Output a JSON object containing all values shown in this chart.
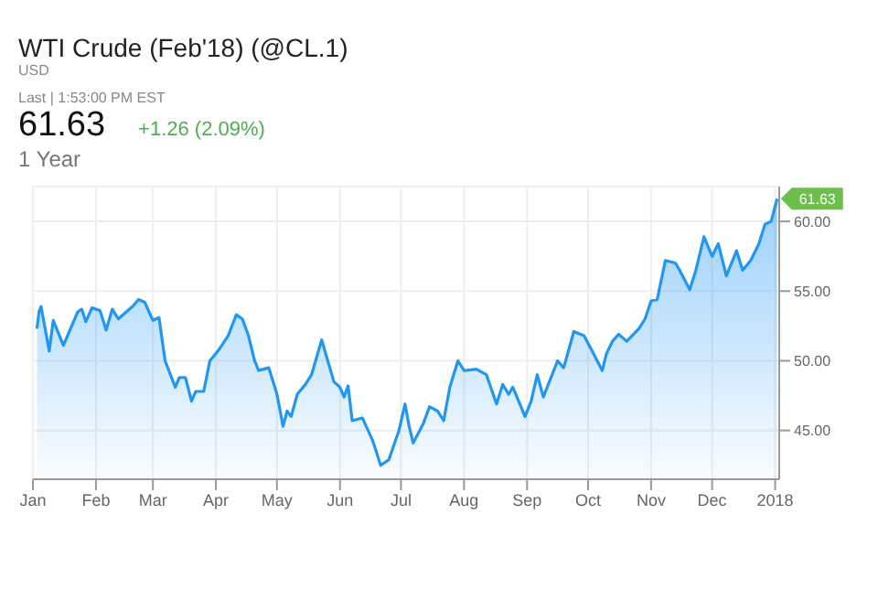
{
  "chart_data": {
    "type": "area",
    "title": "WTI Crude (Feb'18) (@CL.1)",
    "subtitle": "USD",
    "annotations": [
      "Last | 1:53:00 PM EST",
      "61.63",
      "+1.26 (2.09%)",
      "1 Year",
      {
        "text": "61.63",
        "x": "2018-01-02",
        "y": 61.63
      }
    ],
    "x": [
      "2017-01-03",
      "2017-01-04",
      "2017-01-05",
      "2017-01-09",
      "2017-01-11",
      "2017-01-16",
      "2017-01-23",
      "2017-01-25",
      "2017-01-27",
      "2017-01-30",
      "2017-02-03",
      "2017-02-06",
      "2017-02-09",
      "2017-02-12",
      "2017-02-19",
      "2017-02-22",
      "2017-02-25",
      "2017-03-01",
      "2017-03-04",
      "2017-03-07",
      "2017-03-12",
      "2017-03-14",
      "2017-03-17",
      "2017-03-20",
      "2017-03-22",
      "2017-03-26",
      "2017-03-29",
      "2017-04-02",
      "2017-04-07",
      "2017-04-11",
      "2017-04-14",
      "2017-04-17",
      "2017-04-20",
      "2017-04-22",
      "2017-04-27",
      "2017-05-01",
      "2017-05-04",
      "2017-05-06",
      "2017-05-08",
      "2017-05-11",
      "2017-05-15",
      "2017-05-18",
      "2017-05-23",
      "2017-05-27",
      "2017-05-29",
      "2017-06-01",
      "2017-06-03",
      "2017-06-05",
      "2017-06-07",
      "2017-06-12",
      "2017-06-17",
      "2017-06-21",
      "2017-06-25",
      "2017-06-30",
      "2017-07-03",
      "2017-07-05",
      "2017-07-07",
      "2017-07-12",
      "2017-07-15",
      "2017-07-19",
      "2017-07-22",
      "2017-07-25",
      "2017-07-29",
      "2017-08-01",
      "2017-08-07",
      "2017-08-12",
      "2017-08-17",
      "2017-08-20",
      "2017-08-23",
      "2017-08-25",
      "2017-08-31",
      "2017-09-03",
      "2017-09-06",
      "2017-09-09",
      "2017-09-16",
      "2017-09-19",
      "2017-09-24",
      "2017-09-29",
      "2017-10-03",
      "2017-10-08",
      "2017-10-10",
      "2017-10-13",
      "2017-10-16",
      "2017-10-20",
      "2017-10-26",
      "2017-10-29",
      "2017-11-01",
      "2017-11-04",
      "2017-11-08",
      "2017-11-13",
      "2017-11-15",
      "2017-11-20",
      "2017-11-23",
      "2017-11-27",
      "2017-12-01",
      "2017-12-04",
      "2017-12-08",
      "2017-12-13",
      "2017-12-16",
      "2017-12-20",
      "2017-12-24",
      "2017-12-27",
      "2017-12-30",
      "2018-01-02"
    ],
    "values": [
      52.3,
      53.5,
      53.9,
      50.7,
      52.9,
      51.1,
      53.5,
      53.7,
      52.8,
      53.8,
      53.6,
      52.2,
      53.7,
      53.0,
      53.9,
      54.4,
      54.2,
      52.9,
      53.1,
      50.0,
      48.1,
      48.8,
      48.8,
      47.1,
      47.8,
      47.8,
      50.0,
      50.7,
      51.8,
      53.3,
      53.0,
      51.8,
      50.0,
      49.3,
      49.5,
      47.6,
      45.3,
      46.4,
      46.0,
      47.6,
      48.3,
      49.0,
      51.5,
      49.5,
      48.5,
      48.1,
      47.4,
      48.2,
      45.7,
      45.9,
      44.3,
      42.5,
      42.9,
      45.0,
      46.9,
      45.3,
      44.1,
      45.5,
      46.7,
      46.4,
      45.7,
      48.1,
      50.0,
      49.3,
      49.4,
      49.0,
      46.9,
      48.3,
      47.6,
      48.1,
      46.0,
      47.1,
      49.0,
      47.4,
      50.0,
      49.5,
      52.1,
      51.8,
      50.7,
      49.3,
      50.5,
      51.4,
      51.9,
      51.4,
      52.3,
      53.0,
      54.3,
      54.4,
      57.2,
      57.0,
      56.5,
      55.1,
      56.5,
      58.9,
      57.5,
      58.4,
      56.1,
      57.9,
      56.5,
      57.2,
      58.4,
      59.8,
      60.0,
      61.63
    ],
    "color": "#2196f3",
    "xlim": [
      "2017-01-01",
      "2018-01-03"
    ],
    "xticks": [
      {
        "value": "2017-01-01",
        "label": "Jan"
      },
      {
        "value": "2017-02-01",
        "label": "Feb"
      },
      {
        "value": "2017-03-01",
        "label": "Mar"
      },
      {
        "value": "2017-04-01",
        "label": "Apr"
      },
      {
        "value": "2017-05-01",
        "label": "May"
      },
      {
        "value": "2017-06-01",
        "label": "Jun"
      },
      {
        "value": "2017-07-01",
        "label": "Jul"
      },
      {
        "value": "2017-08-01",
        "label": "Aug"
      },
      {
        "value": "2017-09-01",
        "label": "Sep"
      },
      {
        "value": "2017-10-01",
        "label": "Oct"
      },
      {
        "value": "2017-11-01",
        "label": "Nov"
      },
      {
        "value": "2017-12-01",
        "label": "Dec"
      },
      {
        "value": "2018-01-01",
        "label": "2018"
      }
    ],
    "ylim": [
      41.5,
      62.5
    ],
    "yticks": [
      {
        "value": 45,
        "label": "45.00"
      },
      {
        "value": 50,
        "label": "50.00"
      },
      {
        "value": 55,
        "label": "55.00"
      },
      {
        "value": 60,
        "label": "60.00"
      }
    ],
    "grid": true,
    "legend": false,
    "marker": "none",
    "line_style": "solid"
  }
}
